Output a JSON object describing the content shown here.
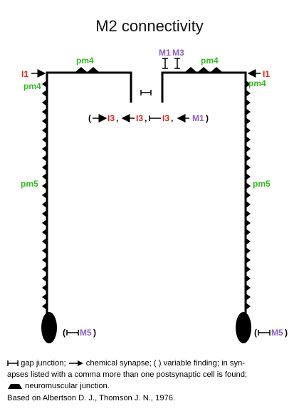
{
  "title": "M2 connectivity",
  "colors": {
    "interneuron": "#e2231a",
    "motor_neuron": "#8c5fc7",
    "muscle": "#33bb22",
    "neuron": "#000000"
  },
  "labels": {
    "i1": "I1",
    "pm4": "pm4",
    "pm5": "pm5",
    "m1": "M1",
    "m3": "M3",
    "m5": "M5",
    "i3": "I3",
    "comma": ",",
    "open_paren": "(",
    "close_paren": ")"
  },
  "legend": {
    "gap_junction": "gap junction;",
    "chemical_synapse": "chemical synapse;",
    "variable_prefix": "( )",
    "variable_text": "variable finding; in syn-",
    "line2": "apses listed with a comma more than one postsynaptic cell is found;",
    "nmj": "neuromuscular junction.",
    "citation": "Based on Albertson D. J., Thomson J. N., 1976."
  }
}
